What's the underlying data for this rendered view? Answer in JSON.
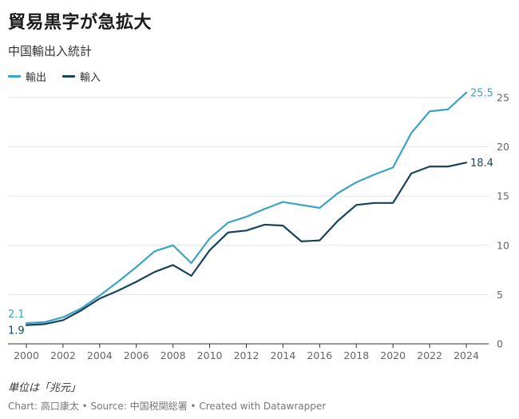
{
  "header": {
    "title": "貿易黒字が急拡大",
    "subtitle": "中国輸出入統計"
  },
  "footer": {
    "notes": "単位は「兆元」",
    "credit": "Chart: 高口康太 • Source: 中国税関総署 • Created with Datawrapper"
  },
  "colors": {
    "export": "#3ba3c3",
    "import": "#17435c",
    "grid": "#e3e3e3",
    "axis": "#333333"
  },
  "chart_data": {
    "type": "line",
    "title": "貿易黒字が急拡大",
    "subtitle": "中国輸出入統計",
    "xlabel": "",
    "ylabel": "",
    "xlim": [
      2000,
      2024
    ],
    "ylim": [
      0,
      25
    ],
    "grid": true,
    "legend": "top-left",
    "x_ticks": [
      2000,
      2002,
      2004,
      2006,
      2008,
      2010,
      2012,
      2014,
      2016,
      2018,
      2020,
      2022,
      2024
    ],
    "y_ticks": [
      0,
      5,
      10,
      15,
      20,
      25
    ],
    "x": [
      2000,
      2001,
      2002,
      2003,
      2004,
      2005,
      2006,
      2007,
      2008,
      2009,
      2010,
      2011,
      2012,
      2013,
      2014,
      2015,
      2016,
      2017,
      2018,
      2019,
      2020,
      2021,
      2022,
      2023,
      2024
    ],
    "series": [
      {
        "name": "輸出",
        "key": "export",
        "values": [
          2.1,
          2.2,
          2.7,
          3.6,
          4.9,
          6.3,
          7.8,
          9.4,
          10.0,
          8.2,
          10.7,
          12.3,
          12.9,
          13.7,
          14.4,
          14.1,
          13.8,
          15.3,
          16.4,
          17.2,
          17.9,
          21.4,
          23.6,
          23.8,
          25.5
        ],
        "end_label": "25.5",
        "start_label": "2.1"
      },
      {
        "name": "輸入",
        "key": "import",
        "values": [
          1.9,
          2.0,
          2.4,
          3.4,
          4.6,
          5.4,
          6.3,
          7.3,
          8.0,
          6.9,
          9.5,
          11.3,
          11.5,
          12.1,
          12.0,
          10.4,
          10.5,
          12.5,
          14.1,
          14.3,
          14.3,
          17.3,
          18.0,
          18.0,
          18.4
        ],
        "end_label": "18.4",
        "start_label": "1.9"
      }
    ]
  }
}
